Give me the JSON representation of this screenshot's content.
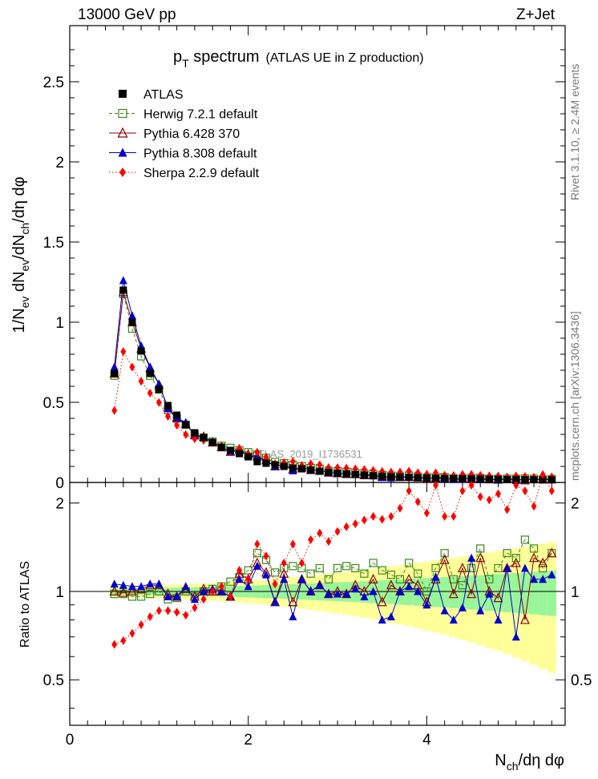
{
  "header": {
    "energy_label": "13000 GeV pp",
    "process_label": "Z+Jet"
  },
  "side_labels": {
    "rivet": "Rivet 3.1.10, ≥ 2.4M events",
    "mcplots": "mcplots.cern.ch [arXiv:1306.3436]"
  },
  "watermark": "ATLAS_2019_I1736531",
  "chart_data": {
    "type": "scatter",
    "title": {
      "p": "p",
      "sub": "T",
      "main": " spectrum",
      "note": "(ATLAS UE in Z production)"
    },
    "ylabel": {
      "p1": "1/N",
      "s1": "ev",
      "p2": " dN",
      "s2": "ev",
      "p3": "/dN",
      "s3": "ch",
      "p4": "/dη dφ"
    },
    "xlabel": {
      "p1": "N",
      "s1": "ch",
      "p2": "/dη dφ"
    },
    "ratio_ylabel": "Ratio to ATLAS",
    "xlim": [
      0,
      5.55
    ],
    "ylim_main": [
      0,
      2.85
    ],
    "ylim_ratio": [
      0.35,
      2.35
    ],
    "x_ticks": [
      "0",
      "2",
      "4"
    ],
    "y_ticks_main": [
      "0",
      "0.5",
      "1",
      "1.5",
      "2",
      "2.5"
    ],
    "y_ticks_ratio": [
      "0.5",
      "1",
      "2"
    ],
    "legend_position": "top-left",
    "legend": [
      {
        "name": "ATLAS",
        "color": "#000000",
        "marker": "square-filled",
        "line": "none"
      },
      {
        "name": "Herwig 7.2.1 default",
        "color": "#3a8a1c",
        "marker": "square-open",
        "line": "dashed"
      },
      {
        "name": "Pythia 6.428 370",
        "color": "#8b0000",
        "marker": "triangle-open",
        "line": "solid"
      },
      {
        "name": "Pythia 8.308 default",
        "color": "#0000cc",
        "marker": "triangle-filled",
        "line": "solid"
      },
      {
        "name": "Sherpa 2.2.9 default",
        "color": "#ff0000",
        "marker": "diamond-filled",
        "line": "dotted"
      }
    ],
    "data_x": [
      0.5,
      0.6,
      0.7,
      0.8,
      0.9,
      1.0,
      1.1,
      1.2,
      1.3,
      1.4,
      1.5,
      1.6,
      1.7,
      1.8,
      1.9,
      2.0,
      2.1,
      2.2,
      2.3,
      2.4,
      2.5,
      2.6,
      2.7,
      2.8,
      2.9,
      3.0,
      3.1,
      3.2,
      3.3,
      3.4,
      3.5,
      3.6,
      3.7,
      3.8,
      3.9,
      4.0,
      4.1,
      4.2,
      4.3,
      4.4,
      4.5,
      4.6,
      4.7,
      4.8,
      4.9,
      5.0,
      5.1,
      5.2,
      5.3,
      5.4
    ],
    "data_y": [
      0.68,
      1.2,
      1.0,
      0.82,
      0.68,
      0.58,
      0.48,
      0.42,
      0.36,
      0.31,
      0.28,
      0.25,
      0.22,
      0.2,
      0.18,
      0.16,
      0.13,
      0.12,
      0.11,
      0.1,
      0.09,
      0.085,
      0.078,
      0.07,
      0.063,
      0.058,
      0.054,
      0.05,
      0.046,
      0.042,
      0.039,
      0.036,
      0.034,
      0.032,
      0.03,
      0.028,
      0.026,
      0.025,
      0.024,
      0.023,
      0.022,
      0.021,
      0.02,
      0.019,
      0.018,
      0.018,
      0.017,
      0.017,
      0.016,
      0.016
    ],
    "ratios": {
      "herwig": [
        0.98,
        0.98,
        0.96,
        0.96,
        0.98,
        1.0,
        0.94,
        0.95,
        1.0,
        0.96,
        1.0,
        1.02,
        1.04,
        1.08,
        1.12,
        1.18,
        1.35,
        1.28,
        1.16,
        1.2,
        1.22,
        1.2,
        1.15,
        1.2,
        1.1,
        1.2,
        1.22,
        1.2,
        1.15,
        1.25,
        1.18,
        1.14,
        1.1,
        1.25,
        1.15,
        1.0,
        1.2,
        1.35,
        1.1,
        1.05,
        1.2,
        1.4,
        1.1,
        1.2,
        1.35,
        1.3,
        1.5,
        1.4,
        1.2,
        1.35
      ],
      "pythia6": [
        1.0,
        0.99,
        1.0,
        1.02,
        1.05,
        1.05,
        0.98,
        0.96,
        1.02,
        0.96,
        1.02,
        1.0,
        1.0,
        0.96,
        1.15,
        1.1,
        1.25,
        1.16,
        0.92,
        1.15,
        0.92,
        1.1,
        1.0,
        1.05,
        0.98,
        1.0,
        0.98,
        1.05,
        1.0,
        1.1,
        0.92,
        1.05,
        1.0,
        1.1,
        1.05,
        0.92,
        1.1,
        1.28,
        0.98,
        1.2,
        0.98,
        1.3,
        1.0,
        0.95,
        1.2,
        1.25,
        0.8,
        1.3,
        1.25,
        1.35
      ],
      "pythia8": [
        1.06,
        1.05,
        1.04,
        1.04,
        1.06,
        1.06,
        0.96,
        0.96,
        1.04,
        0.94,
        1.0,
        1.02,
        1.0,
        0.96,
        1.1,
        1.04,
        1.22,
        1.14,
        0.92,
        1.1,
        0.82,
        1.1,
        1.0,
        1.05,
        0.98,
        0.98,
        0.98,
        1.02,
        0.96,
        1.0,
        0.8,
        0.82,
        1.0,
        1.04,
        1.0,
        0.9,
        1.12,
        0.86,
        0.8,
        0.88,
        1.3,
        0.86,
        0.98,
        0.8,
        1.2,
        0.7,
        1.2,
        1.1,
        1.1,
        1.14
      ],
      "sherpa": [
        0.66,
        0.68,
        0.72,
        0.77,
        0.82,
        0.86,
        0.86,
        0.85,
        0.83,
        0.88,
        0.94,
        1.0,
        1.04,
        0.96,
        1.18,
        1.1,
        1.45,
        1.32,
        1.06,
        1.25,
        1.45,
        1.25,
        1.5,
        1.58,
        1.48,
        1.6,
        1.66,
        1.7,
        1.75,
        1.8,
        1.76,
        1.8,
        1.92,
        2.2,
        2.02,
        1.85,
        2.3,
        1.8,
        1.8,
        2.2,
        2.3,
        2.1,
        2.05,
        2.15,
        1.9,
        2.3,
        2.2,
        1.95,
        2.5,
        2.2
      ]
    }
  }
}
